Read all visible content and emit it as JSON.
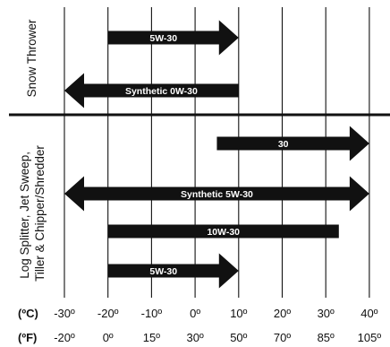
{
  "chart_data": {
    "type": "range-arrows",
    "x_unit_celsius": "(ºC)",
    "x_unit_fahrenheit": "(ºF)",
    "celsius_ticks": [
      "-30º",
      "-20º",
      "-10º",
      "0º",
      "10º",
      "20º",
      "30º",
      "40º"
    ],
    "celsius_values": [
      -30,
      -20,
      -10,
      0,
      10,
      20,
      30,
      40
    ],
    "fahrenheit_ticks": [
      "-20º",
      "0º",
      "15º",
      "30º",
      "50º",
      "70º",
      "85º",
      "105º"
    ],
    "fahrenheit_values": [
      -20,
      0,
      15,
      30,
      50,
      70,
      85,
      105
    ],
    "xlim_celsius": [
      -30,
      40
    ],
    "grid": true,
    "groups": [
      {
        "label": "Snow Thrower",
        "bars": [
          {
            "name": "5W-30",
            "from_c": -20,
            "to_c": 10,
            "left_arrow": false,
            "right_arrow": true
          },
          {
            "name": "Synthetic 0W-30",
            "from_c": -30,
            "to_c": 10,
            "left_arrow": true,
            "right_arrow": false
          }
        ]
      },
      {
        "label_lines": [
          "Log Splitter, Jet Sweep,",
          "Tiller & Chipper/Shredder"
        ],
        "bars": [
          {
            "name": "30",
            "from_c": 5,
            "to_c": 40,
            "left_arrow": false,
            "right_arrow": true
          },
          {
            "name": "Synthetic 5W-30",
            "from_c": -30,
            "to_c": 40,
            "left_arrow": true,
            "right_arrow": true
          },
          {
            "name": "10W-30",
            "from_c": -20,
            "to_c": 33,
            "left_arrow": false,
            "right_arrow": false
          },
          {
            "name": "5W-30",
            "from_c": -20,
            "to_c": 10,
            "left_arrow": false,
            "right_arrow": true
          }
        ]
      }
    ]
  }
}
